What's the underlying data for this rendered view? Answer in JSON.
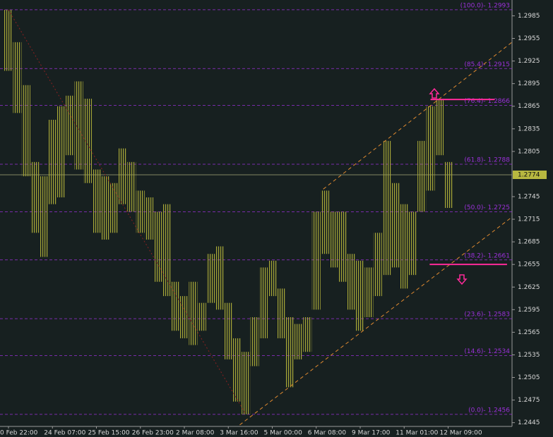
{
  "chart_data": {
    "type": "range",
    "categories": [
      "0 Feb 22:00",
      null,
      null,
      null,
      null,
      "24 Feb 07:00",
      null,
      null,
      null,
      null,
      "25 Feb 15:00",
      null,
      null,
      null,
      null,
      "26 Feb 23:00",
      null,
      null,
      null,
      null,
      "2 Mar 08:00",
      null,
      null,
      null,
      null,
      "3 Mar 16:00",
      null,
      null,
      null,
      null,
      "5 Mar 00:00",
      null,
      null,
      null,
      null,
      "6 Mar 08:00",
      null,
      null,
      null,
      null,
      "9 Mar 17:00",
      null,
      null,
      null,
      null,
      "11 Mar 01:00",
      null,
      null,
      null,
      null,
      "12 Mar 09:00"
    ],
    "high": [
      1.2993,
      1.295,
      1.2893,
      1.2791,
      1.2772,
      1.2847,
      1.2865,
      1.2879,
      1.2898,
      1.2875,
      1.2781,
      1.2772,
      1.2763,
      1.2809,
      1.2791,
      1.2753,
      1.2744,
      1.2725,
      1.2735,
      1.2632,
      1.2613,
      1.2632,
      1.2604,
      1.2669,
      1.2679,
      1.2604,
      1.2557,
      1.2539,
      1.2585,
      1.2651,
      1.266,
      1.2623,
      1.2585,
      1.2576,
      1.2585,
      1.2725,
      1.2753,
      1.2725,
      1.2725,
      1.2669,
      1.266,
      1.2651,
      1.2697,
      1.2819,
      1.2763,
      1.2735,
      1.2725,
      1.2819,
      1.2865,
      1.2875,
      1.2791
    ],
    "low": [
      1.2912,
      1.2856,
      1.2772,
      1.2697,
      1.2665,
      1.2735,
      1.2744,
      1.28,
      1.2781,
      1.2763,
      1.2697,
      1.2688,
      1.2697,
      1.2735,
      1.2725,
      1.2697,
      1.2688,
      1.2632,
      1.2613,
      1.2567,
      1.2557,
      1.2548,
      1.2567,
      1.2604,
      1.2595,
      1.2529,
      1.2473,
      1.2456,
      1.252,
      1.2557,
      1.2613,
      1.2557,
      1.2492,
      1.2529,
      1.2539,
      1.2595,
      1.2669,
      1.2651,
      1.2632,
      1.2595,
      1.2567,
      1.2585,
      1.2613,
      1.2641,
      1.2651,
      1.2623,
      1.2641,
      1.2725,
      1.2753,
      1.28,
      1.273
    ],
    "color": "#a8a838",
    "ylim": [
      1.244,
      1.3006
    ],
    "yticks": [
      1.2445,
      1.2475,
      1.2505,
      1.2535,
      1.2565,
      1.2595,
      1.2625,
      1.2655,
      1.2685,
      1.2715,
      1.2745,
      1.2805,
      1.2835,
      1.2865,
      1.2895,
      1.2925,
      1.2955,
      1.2985
    ],
    "levels": [
      {
        "label": "(100.0)- 1.2993",
        "value": 1.2993
      },
      {
        "label": "(85.4)- 1.2915",
        "value": 1.2915
      },
      {
        "label": "(76.4)- 1.2866",
        "value": 1.2866
      },
      {
        "label": "(61.8)- 1.2788",
        "value": 1.2788
      },
      {
        "label": "(50.0)- 1.2725",
        "value": 1.2725
      },
      {
        "label": "(38.2)- 1.2661",
        "value": 1.2661
      },
      {
        "label": "(23.6)- 1.2583",
        "value": 1.2583
      },
      {
        "label": "(14.6)- 1.2534",
        "value": 1.2534
      },
      {
        "label": "(0.0)- 1.2456",
        "value": 1.2456
      }
    ],
    "level_color": "#9a30d8",
    "current_price": 1.2774,
    "trendlines": [
      {
        "x": [
          35.8,
          57.3
        ],
        "values": [
          1.2755,
          1.295
        ],
        "color": "#e08a30"
      },
      {
        "x": [
          26.3,
          57.3
        ],
        "values": [
          1.2442,
          1.2718
        ],
        "color": "#e08a30"
      },
      {
        "x": [
          0,
          27
        ],
        "values": [
          1.2993,
          1.2456
        ],
        "color": "#8a2020"
      },
      {
        "x": [
          48.0,
          55.3
        ],
        "values": [
          1.2874,
          1.2874
        ],
        "color": "#ff2a9a"
      },
      {
        "x": [
          47.9,
          56.7
        ],
        "values": [
          1.2655,
          1.2655
        ],
        "color": "#ff2a9a"
      }
    ]
  }
}
